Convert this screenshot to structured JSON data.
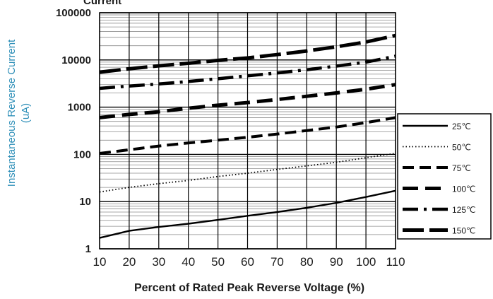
{
  "chart_data": {
    "type": "line",
    "title": "Current",
    "xlabel": "Percent of  Rated Peak Reverse Voltage (%)",
    "ylabel_line1": "Instantaneous Reverse Current",
    "ylabel_line2": "(uA)",
    "x_ticks": [
      "10",
      "20",
      "30",
      "40",
      "50",
      "60",
      "70",
      "80",
      "90",
      "100",
      "110"
    ],
    "y_ticks": [
      "1",
      "10",
      "100",
      "1000",
      "10000",
      "100000"
    ],
    "xlim": [
      10,
      110
    ],
    "ylim": [
      1,
      100000
    ],
    "y_scale": "log",
    "grid": true,
    "legend_position": "right",
    "x": [
      10,
      20,
      30,
      40,
      50,
      60,
      70,
      80,
      90,
      100,
      110
    ],
    "series": [
      {
        "name": "25℃",
        "dash": "solid",
        "color": "#000000",
        "values": [
          1.7,
          2.4,
          2.9,
          3.4,
          4.1,
          5.0,
          6.0,
          7.4,
          9.4,
          12.5,
          17
        ]
      },
      {
        "name": "50℃",
        "dash": "dot",
        "color": "#000000",
        "values": [
          16,
          20,
          24,
          28,
          34,
          40,
          48,
          57,
          68,
          85,
          105
        ]
      },
      {
        "name": "75℃",
        "dash": "dash",
        "color": "#000000",
        "values": [
          105,
          125,
          150,
          175,
          200,
          230,
          270,
          320,
          380,
          470,
          600
        ]
      },
      {
        "name": "100℃",
        "dash": "longdash",
        "color": "#000000",
        "values": [
          600,
          700,
          800,
          950,
          1100,
          1250,
          1450,
          1700,
          2000,
          2400,
          3000
        ]
      },
      {
        "name": "125℃",
        "dash": "dashdot",
        "color": "#000000",
        "values": [
          2500,
          2800,
          3100,
          3500,
          4000,
          4600,
          5300,
          6200,
          7400,
          9000,
          12000
        ]
      },
      {
        "name": "150℃",
        "dash": "longdash2",
        "color": "#000000",
        "values": [
          5500,
          6500,
          7500,
          8500,
          9800,
          11000,
          13000,
          15500,
          19000,
          24000,
          33000
        ]
      }
    ]
  }
}
